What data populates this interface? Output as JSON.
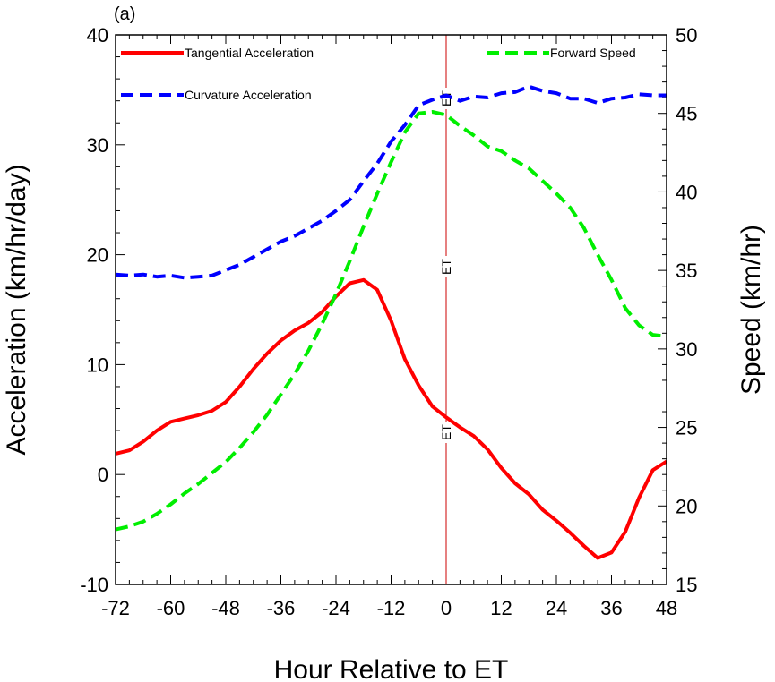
{
  "chart_data": {
    "type": "line",
    "panel_label": "(a)",
    "xlabel": "Hour Relative to ET",
    "ylabel_left": "Acceleration (km/hr/day)",
    "ylabel_right": "Speed (km/hr)",
    "xlim": [
      -72,
      48
    ],
    "ylim_left": [
      -10,
      40
    ],
    "ylim_right": [
      15,
      50
    ],
    "x_ticks": [
      -72,
      -60,
      -48,
      -36,
      -24,
      -12,
      0,
      12,
      24,
      36,
      48
    ],
    "y_ticks_left": [
      -10,
      0,
      10,
      20,
      30,
      40
    ],
    "y_ticks_right": [
      15,
      20,
      25,
      30,
      35,
      40,
      45,
      50
    ],
    "reference_line": {
      "x": 0,
      "color": "#cc0000",
      "labels": [
        "ET",
        "ET",
        "ET"
      ]
    },
    "series": [
      {
        "name": "Tangential Acceleration",
        "axis": "left",
        "color": "#ff0000",
        "dash": "solid",
        "x": [
          -72,
          -69,
          -66,
          -63,
          -60,
          -57,
          -54,
          -51,
          -48,
          -45,
          -42,
          -39,
          -36,
          -33,
          -30,
          -27,
          -24,
          -21,
          -18,
          -15,
          -12,
          -9,
          -6,
          -3,
          0,
          3,
          6,
          9,
          12,
          15,
          18,
          21,
          24,
          27,
          30,
          33,
          36,
          39,
          42,
          45,
          48
        ],
        "values": [
          1.9,
          2.2,
          3.0,
          4.0,
          4.8,
          5.1,
          5.4,
          5.8,
          6.6,
          8.0,
          9.6,
          11.0,
          12.2,
          13.1,
          13.8,
          14.8,
          16.2,
          17.4,
          17.7,
          16.8,
          14.0,
          10.5,
          8.1,
          6.2,
          5.2,
          4.3,
          3.5,
          2.3,
          0.6,
          -0.8,
          -1.8,
          -3.2,
          -4.2,
          -5.3,
          -6.5,
          -7.6,
          -7.1,
          -5.2,
          -2.1,
          0.4,
          1.2
        ]
      },
      {
        "name": "Curvature Acceleration",
        "axis": "left",
        "color": "#0000ff",
        "dash": "dashed",
        "x": [
          -72,
          -69,
          -66,
          -63,
          -60,
          -57,
          -54,
          -51,
          -48,
          -45,
          -42,
          -39,
          -36,
          -33,
          -30,
          -27,
          -24,
          -21,
          -18,
          -15,
          -12,
          -9,
          -6,
          -3,
          0,
          3,
          6,
          9,
          12,
          15,
          18,
          21,
          24,
          27,
          30,
          33,
          36,
          39,
          42,
          45,
          48
        ],
        "values": [
          18.2,
          18.1,
          18.2,
          18.0,
          18.1,
          17.9,
          18.0,
          18.1,
          18.6,
          19.1,
          19.8,
          20.5,
          21.2,
          21.7,
          22.4,
          23.1,
          24.0,
          25.0,
          26.7,
          28.3,
          30.3,
          31.8,
          33.6,
          34.1,
          34.5,
          34.0,
          34.4,
          34.3,
          34.7,
          34.8,
          35.3,
          34.9,
          34.7,
          34.2,
          34.2,
          33.8,
          34.2,
          34.3,
          34.6,
          34.5,
          34.5
        ]
      },
      {
        "name": "Forward Speed",
        "axis": "right",
        "color": "#00ee00",
        "dash": "dashed",
        "x": [
          -72,
          -69,
          -66,
          -63,
          -60,
          -57,
          -54,
          -51,
          -48,
          -45,
          -42,
          -39,
          -36,
          -33,
          -30,
          -27,
          -24,
          -21,
          -18,
          -15,
          -12,
          -9,
          -6,
          -3,
          0,
          3,
          6,
          9,
          12,
          15,
          18,
          21,
          24,
          27,
          30,
          33,
          36,
          39,
          42,
          45,
          48
        ],
        "values": [
          18.5,
          18.7,
          19.0,
          19.5,
          20.1,
          20.8,
          21.4,
          22.1,
          22.8,
          23.7,
          24.7,
          25.8,
          27.1,
          28.4,
          29.9,
          31.6,
          33.5,
          35.6,
          37.8,
          39.9,
          41.9,
          43.8,
          45.0,
          45.1,
          44.9,
          44.2,
          43.6,
          42.9,
          42.6,
          42.0,
          41.5,
          40.7,
          39.9,
          39.0,
          37.7,
          36.0,
          34.4,
          32.6,
          31.5,
          30.9,
          30.8
        ]
      }
    ],
    "legend": [
      {
        "label": "Tangential Acceleration",
        "color": "#ff0000",
        "dash": "solid"
      },
      {
        "label": "Curvature Acceleration",
        "color": "#0000ff",
        "dash": "dashed"
      },
      {
        "label": "Forward Speed",
        "color": "#00ee00",
        "dash": "dashed"
      }
    ]
  }
}
